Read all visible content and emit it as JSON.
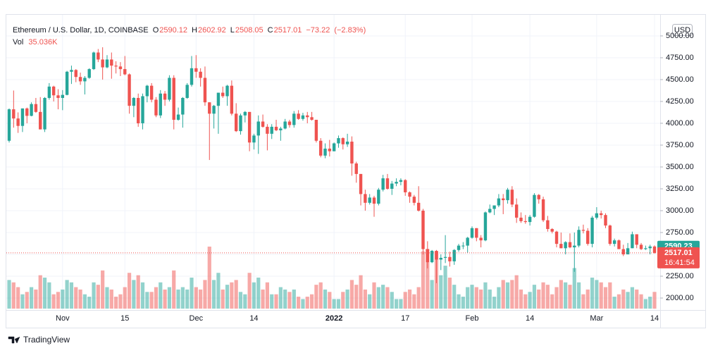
{
  "chart_data": {
    "type": "candlestick",
    "legend": {
      "title": "Ethereum / U.S. Dollar, 1D, COINBASE",
      "ohlc": [
        {
          "label": "O",
          "value": 2590.12
        },
        {
          "label": "H",
          "value": 2602.92
        },
        {
          "label": "L",
          "value": 2508.05
        },
        {
          "label": "C",
          "value": 2517.01
        }
      ],
      "change": {
        "value": -73.22,
        "label": "−73.22"
      },
      "change_pct": {
        "value": -2.83,
        "label": "(−2.83%)"
      },
      "volume_name": "Vol",
      "volume": {
        "value": 35036,
        "label": "35.036K"
      }
    },
    "currency": "USD",
    "brand": "TradingView",
    "up_color": "#26a69a",
    "down_color": "#ef5350",
    "grid": true,
    "ylim": [
      1879,
      5169
    ],
    "yticks": [
      {
        "value": 2000,
        "label": "2000.00"
      },
      {
        "value": 2250,
        "label": "2250.00"
      },
      {
        "value": 2500,
        "label": "2500.00"
      },
      {
        "value": 2750,
        "label": "2750.00"
      },
      {
        "value": 3000,
        "label": "3000.00"
      },
      {
        "value": 3250,
        "label": "3250.00"
      },
      {
        "value": 3500,
        "label": "3500.00"
      },
      {
        "value": 3750,
        "label": "3750.00"
      },
      {
        "value": 4000,
        "label": "4000.00"
      },
      {
        "value": 4250,
        "label": "4250.00"
      },
      {
        "value": 4500,
        "label": "4500.00"
      },
      {
        "value": 4750,
        "label": "4750.00"
      },
      {
        "value": 5000,
        "label": "5000.00"
      }
    ],
    "price_markers": [
      {
        "value": 2590.23,
        "color": "#26a69a"
      },
      {
        "value": 2517.01,
        "color": "#ef5350",
        "countdown": "16:41:54"
      }
    ],
    "categories": [
      null,
      null,
      null,
      null,
      null,
      null,
      null,
      null,
      null,
      null,
      null,
      null,
      "Nov",
      null,
      null,
      null,
      null,
      null,
      null,
      null,
      null,
      null,
      null,
      null,
      null,
      null,
      "15",
      null,
      null,
      null,
      null,
      null,
      null,
      null,
      null,
      null,
      null,
      null,
      null,
      null,
      null,
      null,
      "Dec",
      null,
      null,
      null,
      null,
      null,
      null,
      null,
      null,
      null,
      null,
      null,
      null,
      "14",
      null,
      null,
      null,
      null,
      null,
      null,
      null,
      null,
      null,
      null,
      null,
      null,
      null,
      null,
      null,
      null,
      null,
      "2022",
      null,
      null,
      null,
      null,
      null,
      null,
      null,
      null,
      null,
      null,
      null,
      null,
      null,
      null,
      null,
      "17",
      null,
      null,
      null,
      null,
      null,
      null,
      null,
      null,
      null,
      null,
      null,
      null,
      null,
      null,
      "Feb",
      null,
      null,
      null,
      null,
      null,
      null,
      null,
      null,
      null,
      null,
      null,
      null,
      "14",
      null,
      null,
      null,
      null,
      null,
      null,
      null,
      null,
      null,
      null,
      null,
      null,
      null,
      null,
      "Mar",
      null,
      null,
      null,
      null,
      null,
      null,
      null,
      null,
      null,
      null,
      null,
      null,
      "14"
    ],
    "ohlc": [
      [
        3800,
        4170,
        3780,
        4160
      ],
      [
        4160,
        4375,
        3950,
        4055
      ],
      [
        4055,
        4125,
        3890,
        3970
      ],
      [
        3970,
        4170,
        3900,
        4170
      ],
      [
        4170,
        4180,
        4000,
        4085
      ],
      [
        4085,
        4240,
        4080,
        4220
      ],
      [
        4220,
        4290,
        4120,
        4130
      ],
      [
        4130,
        4300,
        3930,
        3930
      ],
      [
        3930,
        4300,
        3900,
        4290
      ],
      [
        4290,
        4460,
        4270,
        4420
      ],
      [
        4420,
        4430,
        4250,
        4320
      ],
      [
        4320,
        4390,
        4160,
        4290
      ],
      [
        4290,
        4380,
        4150,
        4325
      ],
      [
        4325,
        4600,
        4320,
        4590
      ],
      [
        4590,
        4660,
        4450,
        4610
      ],
      [
        4610,
        4620,
        4470,
        4530
      ],
      [
        4530,
        4580,
        4440,
        4480
      ],
      [
        4480,
        4540,
        4330,
        4520
      ],
      [
        4520,
        4630,
        4510,
        4620
      ],
      [
        4620,
        4820,
        4610,
        4810
      ],
      [
        4810,
        4850,
        4700,
        4730
      ],
      [
        4730,
        4870,
        4500,
        4640
      ],
      [
        4640,
        4780,
        4630,
        4730
      ],
      [
        4730,
        4810,
        4510,
        4660
      ],
      [
        4660,
        4710,
        4570,
        4650
      ],
      [
        4650,
        4700,
        4540,
        4620
      ],
      [
        4620,
        4770,
        4550,
        4560
      ],
      [
        4560,
        4570,
        4110,
        4200
      ],
      [
        4200,
        4300,
        4070,
        4290
      ],
      [
        4290,
        4340,
        3960,
        4000
      ],
      [
        4000,
        4340,
        3930,
        4310
      ],
      [
        4310,
        4440,
        4240,
        4430
      ],
      [
        4430,
        4460,
        4240,
        4270
      ],
      [
        4270,
        4300,
        4070,
        4090
      ],
      [
        4090,
        4380,
        4060,
        4340
      ],
      [
        4340,
        4370,
        4200,
        4270
      ],
      [
        4270,
        4550,
        4250,
        4520
      ],
      [
        4520,
        4550,
        3930,
        4040
      ],
      [
        4040,
        4180,
        4030,
        4100
      ],
      [
        4100,
        4300,
        3950,
        4290
      ],
      [
        4290,
        4460,
        4280,
        4440
      ],
      [
        4440,
        4770,
        4420,
        4630
      ],
      [
        4630,
        4780,
        4520,
        4590
      ],
      [
        4590,
        4630,
        4420,
        4520
      ],
      [
        4520,
        4650,
        4200,
        4240
      ],
      [
        4240,
        4240,
        3580,
        4110
      ],
      [
        4110,
        4210,
        3940,
        4200
      ],
      [
        4200,
        4350,
        3880,
        4350
      ],
      [
        4350,
        4420,
        4290,
        4310
      ],
      [
        4310,
        4440,
        4200,
        4430
      ],
      [
        4430,
        4490,
        4090,
        4110
      ],
      [
        4110,
        4230,
        3900,
        3910
      ],
      [
        3910,
        4110,
        3870,
        4090
      ],
      [
        4090,
        4140,
        4010,
        4130
      ],
      [
        4130,
        4130,
        3680,
        3780
      ],
      [
        3780,
        3880,
        3700,
        3860
      ],
      [
        3860,
        4090,
        3650,
        4020
      ],
      [
        4020,
        4100,
        3950,
        3960
      ],
      [
        3960,
        3990,
        3690,
        3880
      ],
      [
        3880,
        3990,
        3820,
        3960
      ],
      [
        3960,
        4040,
        3910,
        3920
      ],
      [
        3920,
        3960,
        3800,
        3940
      ],
      [
        3940,
        4050,
        3930,
        4020
      ],
      [
        4020,
        4040,
        3950,
        3980
      ],
      [
        3980,
        4140,
        3950,
        4110
      ],
      [
        4110,
        4150,
        4040,
        4050
      ],
      [
        4050,
        4120,
        4030,
        4090
      ],
      [
        4090,
        4130,
        4000,
        4070
      ],
      [
        4070,
        4130,
        4030,
        4040
      ],
      [
        4040,
        4040,
        3780,
        3800
      ],
      [
        3800,
        3830,
        3610,
        3630
      ],
      [
        3630,
        3770,
        3600,
        3710
      ],
      [
        3710,
        3810,
        3620,
        3680
      ],
      [
        3680,
        3780,
        3680,
        3770
      ],
      [
        3770,
        3860,
        3720,
        3830
      ],
      [
        3830,
        3840,
        3700,
        3760
      ],
      [
        3760,
        3880,
        3730,
        3790
      ],
      [
        3790,
        3850,
        3400,
        3540
      ],
      [
        3540,
        3560,
        3320,
        3420
      ],
      [
        3420,
        3420,
        3060,
        3190
      ],
      [
        3190,
        3240,
        3000,
        3090
      ],
      [
        3090,
        3190,
        3070,
        3150
      ],
      [
        3150,
        3170,
        2930,
        3080
      ],
      [
        3080,
        3260,
        3060,
        3240
      ],
      [
        3240,
        3410,
        3220,
        3370
      ],
      [
        3370,
        3420,
        3240,
        3250
      ],
      [
        3250,
        3340,
        3180,
        3310
      ],
      [
        3310,
        3370,
        3280,
        3330
      ],
      [
        3330,
        3370,
        3290,
        3350
      ],
      [
        3350,
        3360,
        3170,
        3210
      ],
      [
        3210,
        3220,
        3090,
        3160
      ],
      [
        3160,
        3180,
        3060,
        3090
      ],
      [
        3090,
        3280,
        2990,
        3000
      ],
      [
        3000,
        3020,
        2500,
        2560
      ],
      [
        2560,
        2650,
        2340,
        2410
      ],
      [
        2410,
        2550,
        2400,
        2540
      ],
      [
        2540,
        2550,
        2170,
        2440
      ],
      [
        2440,
        2500,
        2320,
        2460
      ],
      [
        2460,
        2720,
        2400,
        2470
      ],
      [
        2470,
        2530,
        2360,
        2420
      ],
      [
        2420,
        2560,
        2380,
        2550
      ],
      [
        2550,
        2620,
        2530,
        2600
      ],
      [
        2600,
        2640,
        2560,
        2600
      ],
      [
        2600,
        2700,
        2520,
        2690
      ],
      [
        2690,
        2820,
        2680,
        2800
      ],
      [
        2800,
        2800,
        2650,
        2690
      ],
      [
        2690,
        2720,
        2580,
        2660
      ],
      [
        2660,
        2990,
        2650,
        2980
      ],
      [
        2980,
        3070,
        2970,
        3020
      ],
      [
        3020,
        3060,
        2950,
        3060
      ],
      [
        3060,
        3190,
        3040,
        3140
      ],
      [
        3140,
        3190,
        2960,
        3120
      ],
      [
        3120,
        3260,
        3080,
        3240
      ],
      [
        3240,
        3280,
        3040,
        3070
      ],
      [
        3070,
        3140,
        2860,
        2920
      ],
      [
        2920,
        2980,
        2860,
        2880
      ],
      [
        2880,
        2950,
        2850,
        2870
      ],
      [
        2870,
        2950,
        2830,
        2930
      ],
      [
        2930,
        3200,
        2920,
        3180
      ],
      [
        3180,
        3190,
        3080,
        3130
      ],
      [
        3130,
        3160,
        2870,
        2890
      ],
      [
        2890,
        2940,
        2760,
        2790
      ],
      [
        2790,
        2800,
        2740,
        2760
      ],
      [
        2760,
        2770,
        2580,
        2620
      ],
      [
        2620,
        2750,
        2570,
        2570
      ],
      [
        2570,
        2650,
        2500,
        2640
      ],
      [
        2640,
        2740,
        2570,
        2580
      ],
      [
        2580,
        2750,
        2300,
        2600
      ],
      [
        2600,
        2820,
        2580,
        2780
      ],
      [
        2780,
        2840,
        2740,
        2770
      ],
      [
        2770,
        2800,
        2600,
        2620
      ],
      [
        2620,
        2940,
        2580,
        2920
      ],
      [
        2920,
        3040,
        2900,
        2970
      ],
      [
        2970,
        3000,
        2910,
        2950
      ],
      [
        2950,
        2970,
        2800,
        2830
      ],
      [
        2830,
        2840,
        2600,
        2620
      ],
      [
        2620,
        2680,
        2590,
        2660
      ],
      [
        2660,
        2670,
        2560,
        2560
      ],
      [
        2560,
        2610,
        2480,
        2500
      ],
      [
        2500,
        2630,
        2500,
        2570
      ],
      [
        2570,
        2760,
        2570,
        2730
      ],
      [
        2730,
        2730,
        2570,
        2610
      ],
      [
        2610,
        2630,
        2550,
        2560
      ],
      [
        2560,
        2600,
        2550,
        2570
      ],
      [
        2570,
        2610,
        2500,
        2590
      ],
      [
        2590.12,
        2602.92,
        2508.05,
        2517.01
      ]
    ],
    "volume": [
      60000,
      55000,
      45000,
      30000,
      35000,
      45000,
      40000,
      70000,
      65000,
      55000,
      30000,
      35000,
      40000,
      60000,
      55000,
      45000,
      40000,
      30000,
      25000,
      55000,
      50000,
      80000,
      45000,
      40000,
      25000,
      30000,
      45000,
      75000,
      60000,
      70000,
      55000,
      35000,
      35000,
      45000,
      55000,
      40000,
      45000,
      80000,
      40000,
      45000,
      40000,
      65000,
      45000,
      40000,
      60000,
      130000,
      60000,
      75000,
      40000,
      50000,
      55000,
      60000,
      35000,
      30000,
      75000,
      55000,
      65000,
      40000,
      55000,
      30000,
      30000,
      45000,
      40000,
      35000,
      40000,
      25000,
      20000,
      25000,
      30000,
      50000,
      55000,
      40000,
      35000,
      20000,
      20000,
      35000,
      40000,
      60000,
      50000,
      70000,
      40000,
      30000,
      55000,
      45000,
      50000,
      45000,
      35000,
      20000,
      20000,
      35000,
      40000,
      30000,
      45000,
      120000,
      125000,
      60000,
      120000,
      70000,
      90000,
      65000,
      50000,
      30000,
      25000,
      45000,
      50000,
      45000,
      40000,
      55000,
      40000,
      25000,
      45000,
      60000,
      55000,
      60000,
      70000,
      40000,
      30000,
      35000,
      50000,
      40000,
      55000,
      50000,
      30000,
      45000,
      60000,
      55000,
      50000,
      85000,
      55000,
      30000,
      40000,
      65000,
      60000,
      55000,
      45000,
      55000,
      25000,
      30000,
      40000,
      35000,
      45000,
      40000,
      30000,
      20000,
      25000,
      35036
    ]
  }
}
